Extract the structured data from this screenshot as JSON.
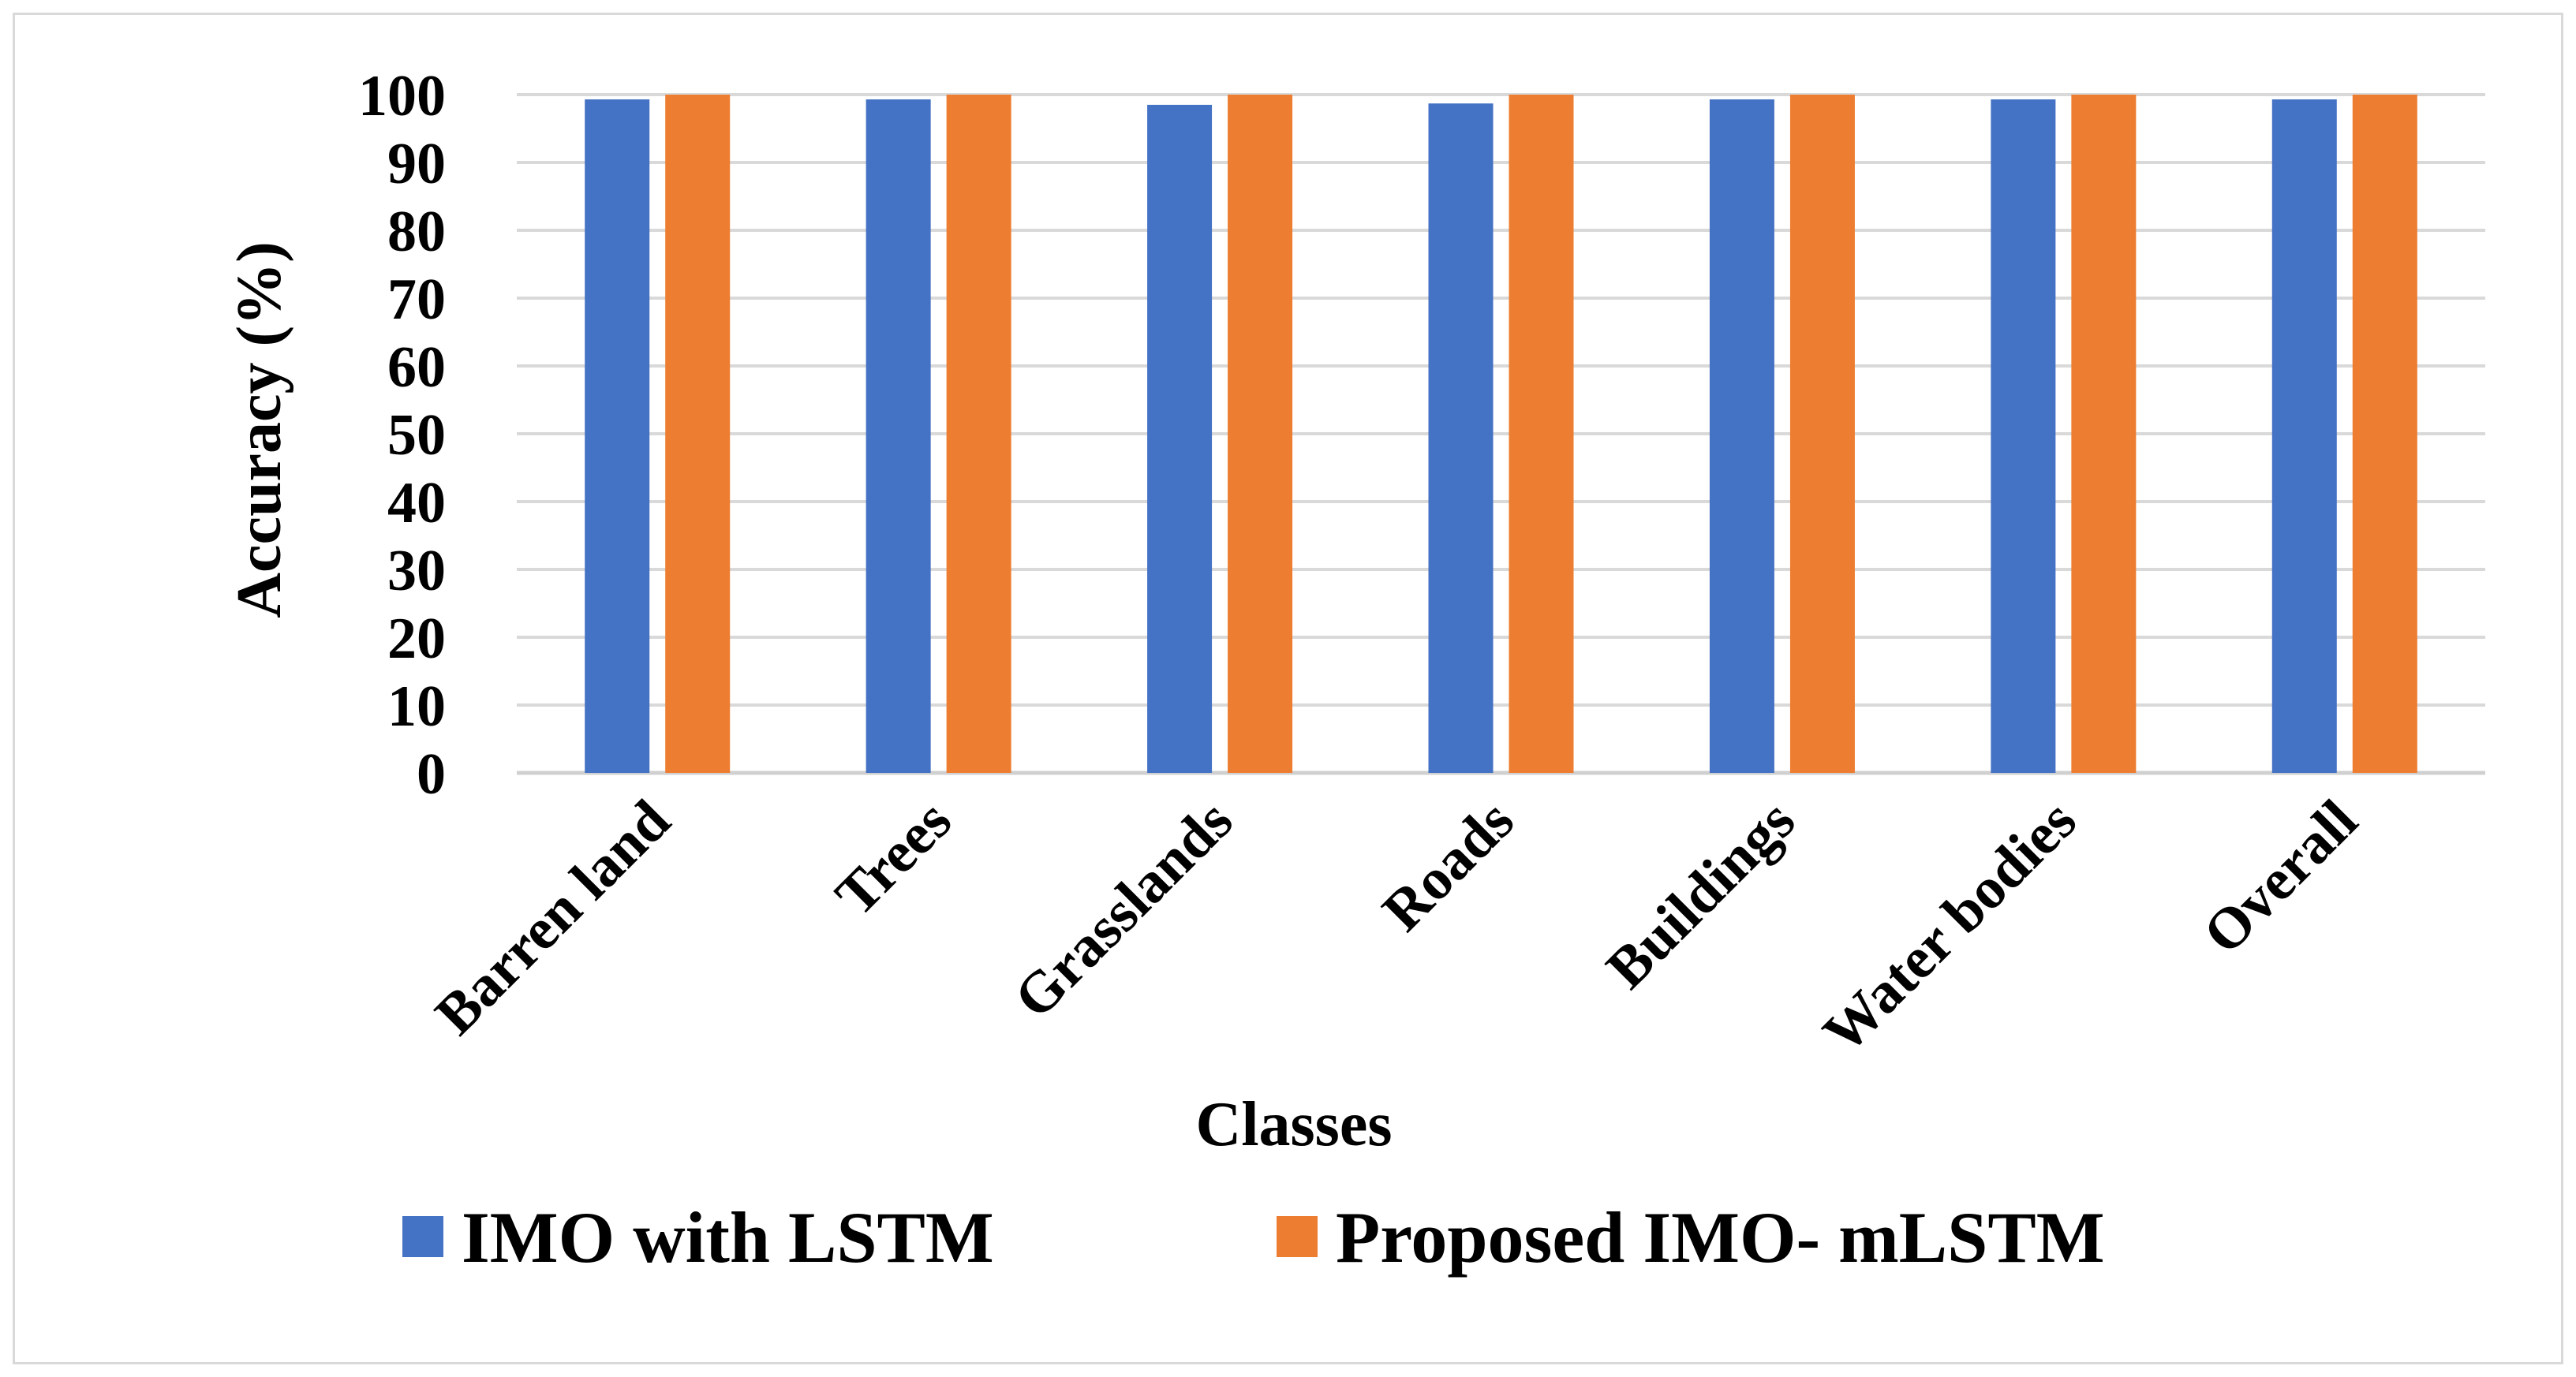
{
  "chart_data": {
    "type": "bar",
    "xlabel": "Classes",
    "ylabel": "Accuracy (%)",
    "ylim": [
      0,
      100
    ],
    "yticks": [
      0,
      10,
      20,
      30,
      40,
      50,
      60,
      70,
      80,
      90,
      100
    ],
    "grid": true,
    "legend_position": "bottom",
    "categories": [
      "Barren land",
      "Trees",
      "Grasslands",
      "Roads",
      "Buildings",
      "Water bodies",
      "Overall"
    ],
    "series": [
      {
        "name": "IMO with LSTM",
        "color": "#4472c4",
        "values": [
          99.3,
          99.3,
          98.5,
          98.7,
          99.3,
          99.3,
          99.3
        ]
      },
      {
        "name": "Proposed IMO- mLSTM",
        "color": "#ed7d31",
        "values": [
          100,
          100,
          100,
          100,
          100,
          100,
          100
        ]
      }
    ]
  }
}
